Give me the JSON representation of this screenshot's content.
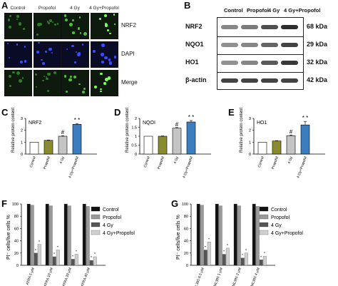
{
  "panelA": {
    "label": "A",
    "columns": [
      "Control",
      "Propofol",
      "4 Gy",
      "4 Gy+Propofol"
    ],
    "rows": [
      "NRF2",
      "DAPI",
      "Merge"
    ]
  },
  "panelB": {
    "label": "B",
    "columns": [
      "Control",
      "Propofol",
      "4 Gy",
      "4 Gy+Propofol"
    ],
    "proteins": [
      {
        "name": "NRF2",
        "kda": "68 kDa",
        "intensity": [
          0.55,
          0.6,
          0.8,
          0.95
        ]
      },
      {
        "name": "NQO1",
        "kda": "29 kDa",
        "intensity": [
          0.5,
          0.55,
          0.7,
          0.85
        ]
      },
      {
        "name": "HO1",
        "kda": "32 kDa",
        "intensity": [
          0.5,
          0.55,
          0.75,
          0.9
        ]
      },
      {
        "name": "β-actin",
        "kda": "42 kDa",
        "intensity": [
          0.85,
          0.85,
          0.85,
          0.85
        ]
      }
    ]
  },
  "chart_data": [
    {
      "panel": "C",
      "type": "bar",
      "title": "NRF2",
      "ylabel": "Relative protein content",
      "categories": [
        "Control",
        "Propofol",
        "4 Gy",
        "4 Gy+Propofol"
      ],
      "values": [
        1.0,
        1.15,
        1.5,
        2.5
      ],
      "errors": [
        0.0,
        0.03,
        0.05,
        0.07
      ],
      "ylim": [
        0,
        3
      ],
      "yticks": [
        0,
        1,
        2,
        3
      ],
      "annotations": [
        "",
        "",
        "#",
        "* *"
      ],
      "colors": [
        "#ffffff",
        "#8a8a2e",
        "#c4c4c4",
        "#3b7dbf"
      ]
    },
    {
      "panel": "D",
      "type": "bar",
      "title": "NQOI",
      "ylabel": "Relative protein content",
      "categories": [
        "Control",
        "Propofol",
        "4 Gy",
        "4 Gy+Propofol"
      ],
      "values": [
        1.0,
        1.0,
        1.45,
        1.8
      ],
      "errors": [
        0.0,
        0.02,
        0.04,
        0.08
      ],
      "ylim": [
        0,
        2.0
      ],
      "yticks": [
        0.0,
        0.5,
        1.0,
        1.5,
        2.0
      ],
      "annotations": [
        "",
        "",
        "#",
        "* *"
      ],
      "colors": [
        "#ffffff",
        "#8a8a2e",
        "#c4c4c4",
        "#3b7dbf"
      ]
    },
    {
      "panel": "E",
      "type": "bar",
      "title": "HO1",
      "ylabel": "Relative protein content",
      "categories": [
        "Control",
        "Propofol",
        "4 Gy",
        "4 Gy+Propofol"
      ],
      "values": [
        1.0,
        1.1,
        1.55,
        2.45
      ],
      "errors": [
        0.0,
        0.03,
        0.05,
        0.3
      ],
      "ylim": [
        0,
        3
      ],
      "yticks": [
        0,
        1,
        2,
        3
      ],
      "annotations": [
        "",
        "",
        "#",
        "* *"
      ],
      "colors": [
        "#ffffff",
        "#8a8a2e",
        "#c4c4c4",
        "#3b7dbf"
      ]
    },
    {
      "panel": "F",
      "type": "bar",
      "ylabel": "PI⁻ cells/live cells %",
      "categories": [
        "ATRA 5 μM",
        "ATRA 10 μM",
        "ATRA 20 μM",
        "ATRA 40 μM"
      ],
      "series": [
        {
          "name": "Control",
          "values": [
            100,
            100,
            100,
            100
          ],
          "color": "#111111"
        },
        {
          "name": "Propofol",
          "values": [
            98,
            97,
            97,
            96
          ],
          "color": "#9a9a9a"
        },
        {
          "name": "4 Gy",
          "values": [
            20,
            14,
            10,
            8
          ],
          "color": "#555555"
        },
        {
          "name": "4 Gy+Propofol",
          "values": [
            34,
            25,
            18,
            14
          ],
          "color": "#d0d0d0"
        }
      ],
      "ylim": [
        0,
        100
      ],
      "yticks": [
        0,
        20,
        40,
        60,
        80,
        100
      ]
    },
    {
      "panel": "G",
      "type": "bar",
      "ylabel": "PI⁻ cells/live cells %",
      "categories": [
        "ML385 0.5 μM",
        "ML385 1 μM",
        "ML385 2 μM",
        "ML385 4 μM"
      ],
      "series": [
        {
          "name": "Control",
          "values": [
            100,
            100,
            100,
            100
          ],
          "color": "#111111"
        },
        {
          "name": "Propofol",
          "values": [
            98,
            97,
            97,
            96
          ],
          "color": "#9a9a9a"
        },
        {
          "name": "4 Gy",
          "values": [
            25,
            18,
            12,
            9
          ],
          "color": "#555555"
        },
        {
          "name": "4 Gy+Propofol",
          "values": [
            38,
            28,
            20,
            15
          ],
          "color": "#d0d0d0"
        }
      ],
      "ylim": [
        0,
        100
      ],
      "yticks": [
        0,
        20,
        40,
        60,
        80,
        100
      ]
    }
  ]
}
